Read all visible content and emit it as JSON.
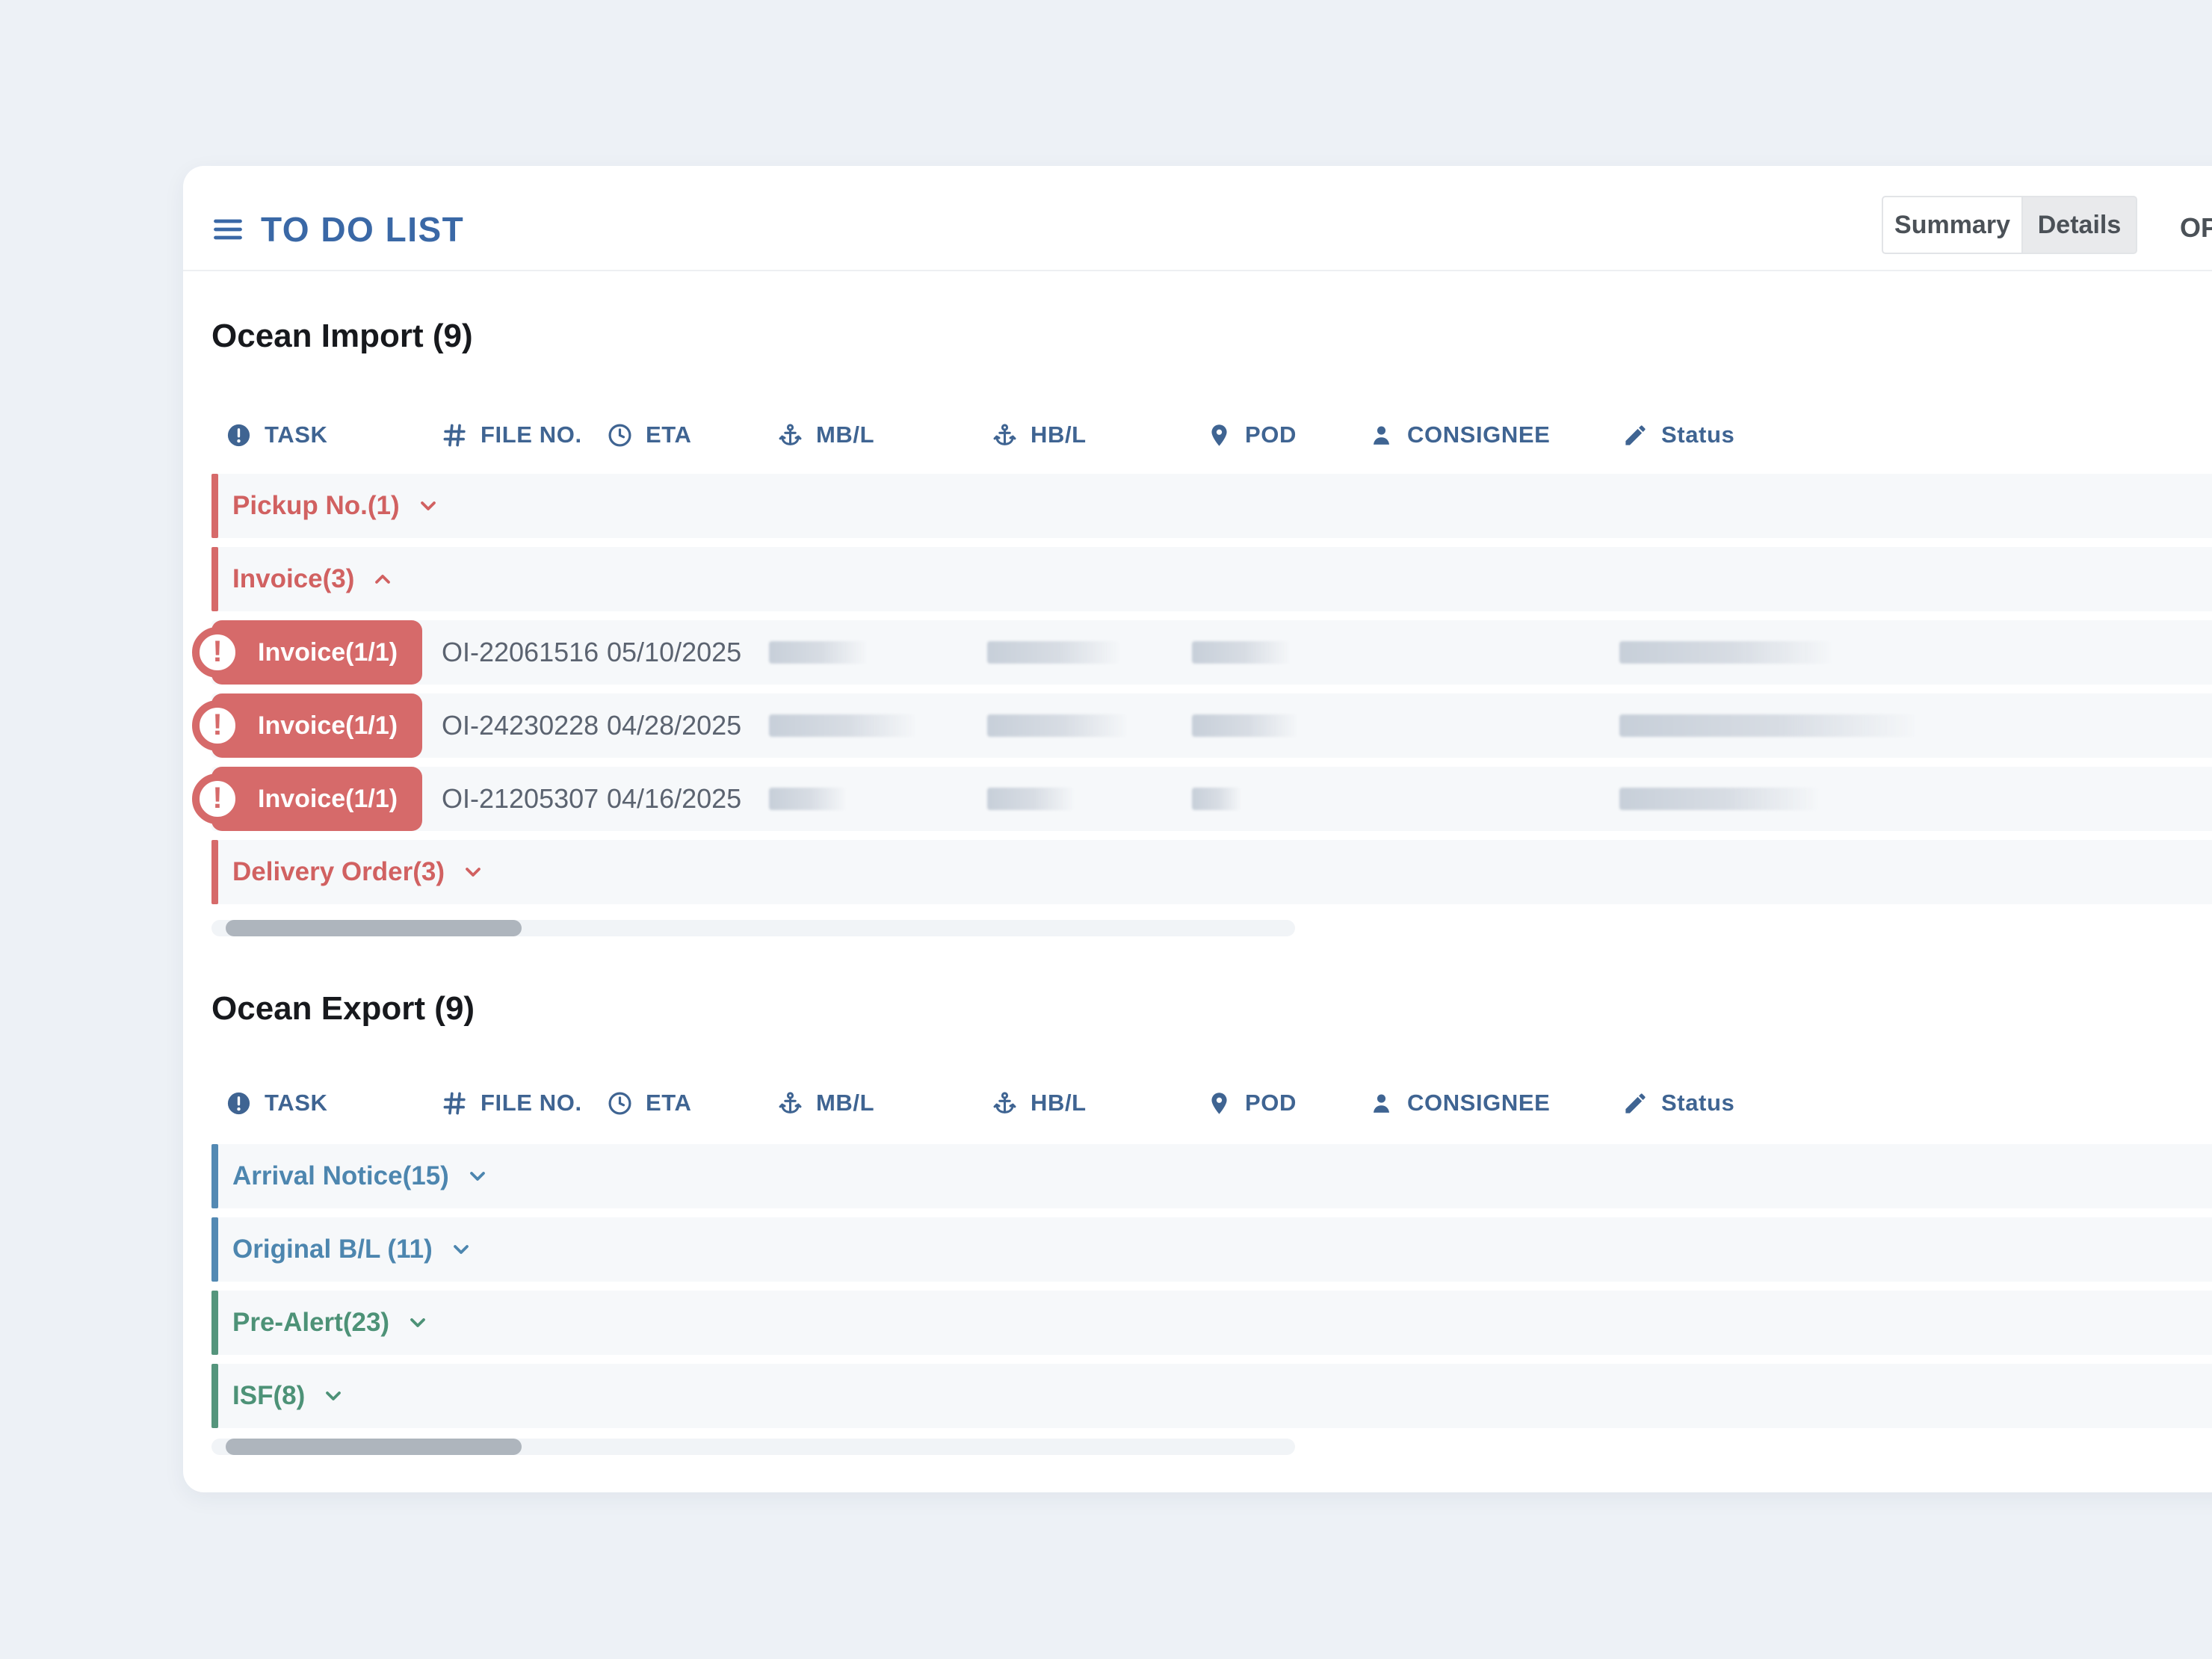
{
  "header": {
    "title": "TO DO LIST",
    "tabs": {
      "summary": "Summary",
      "details": "Details",
      "overflow": "OP:"
    }
  },
  "columns": [
    {
      "icon": "alert-circle",
      "label": "TASK"
    },
    {
      "icon": "hash",
      "label": "FILE NO."
    },
    {
      "icon": "clock",
      "label": "ETA"
    },
    {
      "icon": "anchor",
      "label": "MB/L"
    },
    {
      "icon": "anchor",
      "label": "HB/L"
    },
    {
      "icon": "map-pin",
      "label": "POD"
    },
    {
      "icon": "user",
      "label": "CONSIGNEE"
    },
    {
      "icon": "pencil",
      "label": "Status"
    }
  ],
  "sections": [
    {
      "title": "Ocean Import (9)",
      "groups": [
        {
          "label": "Pickup No.(1)",
          "accent": "red",
          "expanded": false
        },
        {
          "label": "Invoice(3)",
          "accent": "red",
          "expanded": true,
          "tasks": [
            {
              "badge": "Invoice(1/1)",
              "file_no": "OI-22061516",
              "eta": "05/10/2025",
              "skeleton_widths": [
                132,
                179,
                132,
                287
              ]
            },
            {
              "badge": "Invoice(1/1)",
              "file_no": "OI-24230228",
              "eta": "04/28/2025",
              "skeleton_widths": [
                198,
                189,
                142,
                400
              ]
            },
            {
              "badge": "Invoice(1/1)",
              "file_no": "OI-21205307",
              "eta": "04/16/2025",
              "skeleton_widths": [
                104,
                117,
                66,
                268
              ]
            }
          ]
        },
        {
          "label": "Delivery Order(3)",
          "accent": "red",
          "expanded": false
        }
      ]
    },
    {
      "title": "Ocean Export (9)",
      "groups": [
        {
          "label": "Arrival Notice(15)",
          "accent": "blue",
          "expanded": false
        },
        {
          "label": "Original B/L (11)",
          "accent": "blue",
          "expanded": false
        },
        {
          "label": "Pre-Alert(23)",
          "accent": "green",
          "expanded": false
        },
        {
          "label": "ISF(8)",
          "accent": "green",
          "expanded": false
        }
      ]
    }
  ],
  "colors": {
    "accent_red": "#d66a6a",
    "accent_blue": "#5389b3",
    "accent_green": "#55957c",
    "title_blue": "#3a68a6",
    "header_blue": "#3f6492"
  }
}
